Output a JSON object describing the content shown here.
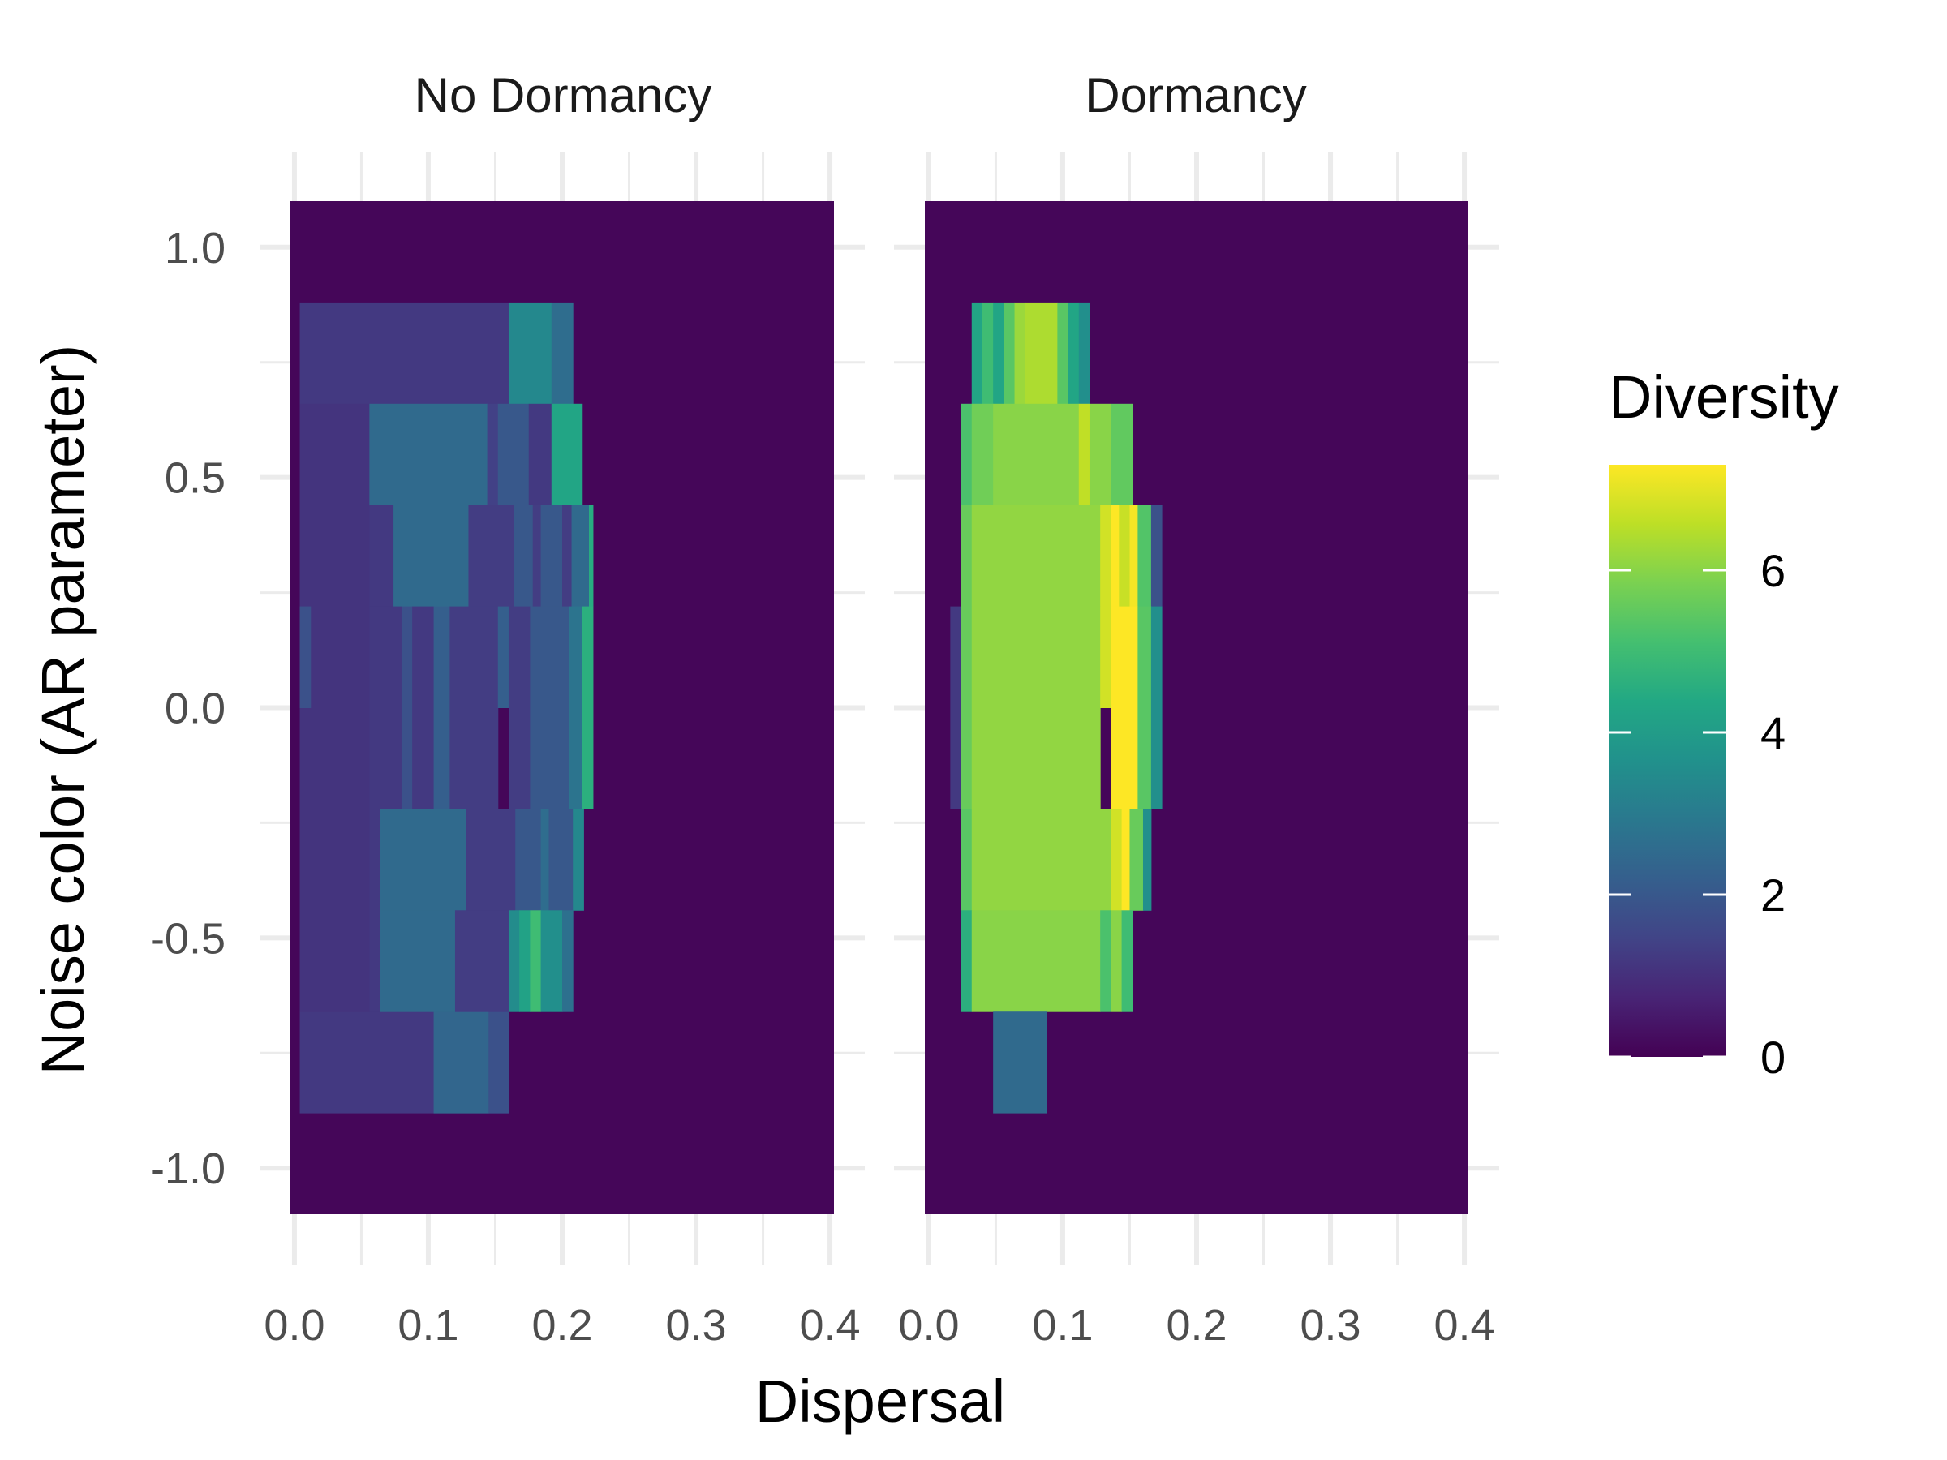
{
  "chart_data": {
    "type": "heatmap",
    "xlabel": "Dispersal",
    "ylabel": "Noise color (AR parameter)",
    "xlim": [
      -0.003,
      0.403
    ],
    "ylim": [
      -1.1,
      1.1
    ],
    "x_ticks": [
      "0.0",
      "0.1",
      "0.2",
      "0.3",
      "0.4"
    ],
    "x_tick_values": [
      0.0,
      0.1,
      0.2,
      0.3,
      0.4
    ],
    "y_ticks": [
      "1.0",
      "0.5",
      "0.0",
      "-0.5",
      "-1.0"
    ],
    "y_tick_values": [
      1.0,
      0.5,
      0.0,
      -0.5,
      -1.0
    ],
    "grid": true,
    "background_fill": 0.1,
    "legend": {
      "title": "Diversity",
      "ticks": [
        "0",
        "2",
        "4",
        "6"
      ],
      "tick_values": [
        0,
        2,
        4,
        6
      ],
      "range": [
        0,
        7.3
      ],
      "placement": "right",
      "colormap": "viridis"
    },
    "panels": [
      {
        "title": "No Dormancy",
        "tiles": [
          [
            0.004,
            0.16,
            -0.88,
            -0.66,
            1.2
          ],
          [
            0.104,
            0.145,
            -0.88,
            -0.66,
            2.4
          ],
          [
            0.145,
            0.16,
            -0.88,
            -0.66,
            1.8
          ],
          [
            0.004,
            0.16,
            0.66,
            0.88,
            1.2
          ],
          [
            0.16,
            0.192,
            0.66,
            0.88,
            3.4
          ],
          [
            0.192,
            0.208,
            0.66,
            0.88,
            2.6
          ],
          [
            0.004,
            0.056,
            -0.66,
            0.66,
            1.1
          ],
          [
            0.056,
            0.144,
            0.44,
            0.66,
            2.5
          ],
          [
            0.144,
            0.152,
            0.44,
            0.66,
            1.4
          ],
          [
            0.152,
            0.175,
            0.44,
            0.66,
            2.0
          ],
          [
            0.175,
            0.192,
            0.44,
            0.66,
            1.2
          ],
          [
            0.192,
            0.215,
            0.44,
            0.66,
            4.3
          ],
          [
            0.056,
            0.074,
            0.22,
            0.44,
            1.2
          ],
          [
            0.074,
            0.13,
            0.22,
            0.44,
            2.5
          ],
          [
            0.13,
            0.164,
            0.22,
            0.44,
            1.3
          ],
          [
            0.164,
            0.178,
            0.22,
            0.44,
            2.0
          ],
          [
            0.178,
            0.184,
            0.22,
            0.44,
            1.3
          ],
          [
            0.184,
            0.2,
            0.22,
            0.44,
            2.0
          ],
          [
            0.2,
            0.207,
            0.22,
            0.44,
            1.3
          ],
          [
            0.207,
            0.22,
            0.22,
            0.44,
            2.5
          ],
          [
            0.22,
            0.223,
            0.22,
            0.44,
            4.5
          ],
          [
            0.004,
            0.012,
            -0.0,
            0.22,
            1.8
          ],
          [
            0.056,
            0.08,
            -0.22,
            0.22,
            1.2
          ],
          [
            0.08,
            0.088,
            -0.22,
            0.22,
            1.8
          ],
          [
            0.088,
            0.104,
            -0.22,
            0.22,
            1.2
          ],
          [
            0.104,
            0.116,
            -0.22,
            0.22,
            2.2
          ],
          [
            0.116,
            0.152,
            -0.22,
            0.22,
            1.3
          ],
          [
            0.152,
            0.16,
            -0.0,
            0.22,
            2.2
          ],
          [
            0.16,
            0.176,
            -0.22,
            0.22,
            1.3
          ],
          [
            0.176,
            0.205,
            -0.22,
            0.22,
            2.0
          ],
          [
            0.205,
            0.215,
            -0.22,
            0.22,
            2.8
          ],
          [
            0.215,
            0.223,
            -0.22,
            0.22,
            4.6
          ],
          [
            0.056,
            0.064,
            -0.66,
            -0.22,
            1.2
          ],
          [
            0.064,
            0.128,
            -0.44,
            -0.22,
            2.5
          ],
          [
            0.128,
            0.165,
            -0.44,
            -0.22,
            1.3
          ],
          [
            0.165,
            0.184,
            -0.44,
            -0.22,
            2.0
          ],
          [
            0.184,
            0.19,
            -0.44,
            -0.22,
            2.6
          ],
          [
            0.19,
            0.208,
            -0.44,
            -0.22,
            2.0
          ],
          [
            0.208,
            0.216,
            -0.44,
            -0.22,
            3.4
          ],
          [
            0.064,
            0.12,
            -0.66,
            -0.44,
            2.5
          ],
          [
            0.12,
            0.16,
            -0.66,
            -0.44,
            1.3
          ],
          [
            0.16,
            0.168,
            -0.66,
            -0.44,
            3.5
          ],
          [
            0.168,
            0.176,
            -0.66,
            -0.44,
            4.2
          ],
          [
            0.176,
            0.184,
            -0.66,
            -0.44,
            5.0
          ],
          [
            0.184,
            0.2,
            -0.66,
            -0.44,
            3.6
          ],
          [
            0.2,
            0.208,
            -0.66,
            -0.44,
            2.7
          ]
        ]
      },
      {
        "title": "Dormancy",
        "tiles": [
          [
            0.032,
            0.04,
            0.66,
            0.88,
            4.3
          ],
          [
            0.04,
            0.048,
            0.66,
            0.88,
            5.0
          ],
          [
            0.048,
            0.056,
            0.66,
            0.88,
            4.3
          ],
          [
            0.056,
            0.064,
            0.66,
            0.88,
            5.4
          ],
          [
            0.064,
            0.072,
            0.66,
            0.88,
            6.2
          ],
          [
            0.072,
            0.096,
            0.66,
            0.88,
            6.4
          ],
          [
            0.096,
            0.104,
            0.66,
            0.88,
            5.4
          ],
          [
            0.104,
            0.112,
            0.66,
            0.88,
            4.3
          ],
          [
            0.112,
            0.12,
            0.66,
            0.88,
            3.6
          ],
          [
            0.024,
            0.032,
            0.44,
            0.66,
            5.2
          ],
          [
            0.032,
            0.048,
            0.44,
            0.66,
            5.7
          ],
          [
            0.048,
            0.112,
            0.44,
            0.66,
            6.0
          ],
          [
            0.112,
            0.12,
            0.44,
            0.66,
            6.6
          ],
          [
            0.12,
            0.136,
            0.44,
            0.66,
            6.0
          ],
          [
            0.136,
            0.152,
            0.44,
            0.66,
            5.5
          ],
          [
            0.024,
            0.032,
            0.22,
            0.44,
            5.6
          ],
          [
            0.032,
            0.128,
            0.22,
            0.44,
            6.1
          ],
          [
            0.128,
            0.136,
            0.22,
            0.44,
            6.8
          ],
          [
            0.136,
            0.142,
            0.22,
            0.44,
            7.3
          ],
          [
            0.142,
            0.15,
            0.22,
            0.44,
            6.7
          ],
          [
            0.15,
            0.156,
            0.22,
            0.44,
            7.2
          ],
          [
            0.156,
            0.166,
            0.22,
            0.44,
            5.3
          ],
          [
            0.166,
            0.174,
            0.22,
            0.44,
            1.8
          ],
          [
            0.016,
            0.024,
            -0.22,
            0.22,
            1.2
          ],
          [
            0.024,
            0.032,
            -0.22,
            0.22,
            5.6
          ],
          [
            0.032,
            0.128,
            -0.22,
            0.22,
            6.1
          ],
          [
            0.128,
            0.136,
            0.0,
            0.22,
            6.8
          ],
          [
            0.136,
            0.156,
            -0.22,
            0.22,
            7.3
          ],
          [
            0.156,
            0.166,
            -0.22,
            0.22,
            5.4
          ],
          [
            0.166,
            0.174,
            -0.22,
            0.22,
            3.6
          ],
          [
            0.024,
            0.032,
            -0.44,
            -0.22,
            5.4
          ],
          [
            0.032,
            0.136,
            -0.44,
            -0.22,
            6.1
          ],
          [
            0.136,
            0.144,
            -0.44,
            -0.22,
            6.8
          ],
          [
            0.144,
            0.15,
            -0.44,
            -0.22,
            7.3
          ],
          [
            0.15,
            0.16,
            -0.44,
            -0.22,
            5.6
          ],
          [
            0.16,
            0.166,
            -0.44,
            -0.22,
            3.6
          ],
          [
            0.024,
            0.032,
            -0.66,
            -0.44,
            4.6
          ],
          [
            0.032,
            0.128,
            -0.66,
            -0.44,
            6.0
          ],
          [
            0.128,
            0.136,
            -0.66,
            -0.44,
            5.2
          ],
          [
            0.136,
            0.144,
            -0.66,
            -0.44,
            6.0
          ],
          [
            0.144,
            0.152,
            -0.66,
            -0.44,
            5.0
          ],
          [
            0.048,
            0.088,
            -0.88,
            -0.66,
            2.5
          ]
        ]
      }
    ]
  }
}
